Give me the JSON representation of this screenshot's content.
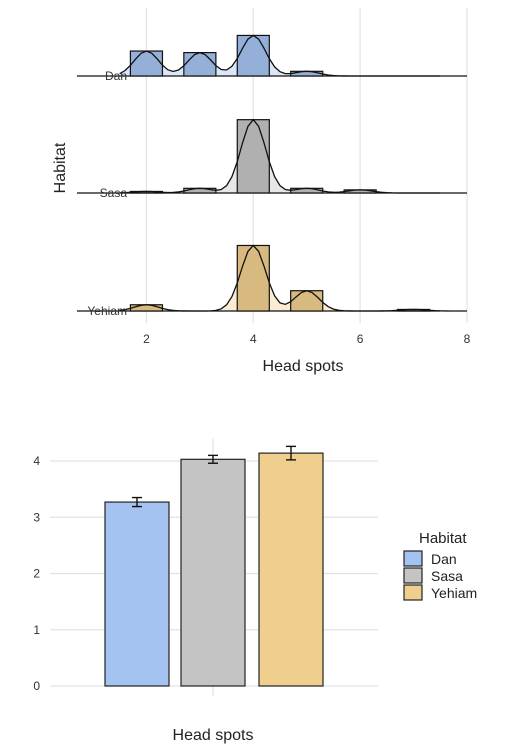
{
  "chart_data": [
    {
      "type": "area",
      "subtype": "ridgeline-histogram",
      "xlabel": "Head spots",
      "ylabel": "Habitat",
      "xlim": [
        1,
        8
      ],
      "x_ticks": [
        2,
        4,
        6,
        8
      ],
      "grid": true,
      "categories": [
        "Dan",
        "Sasa",
        "Yehiam"
      ],
      "series": [
        {
          "name": "Dan",
          "color": "#a4c3f1",
          "histogram": [
            {
              "x": 2,
              "proportion": 0.16
            },
            {
              "x": 3,
              "proportion": 0.15
            },
            {
              "x": 4,
              "proportion": 0.26
            },
            {
              "x": 5,
              "proportion": 0.03
            }
          ]
        },
        {
          "name": "Sasa",
          "color": "#c4c4c4",
          "histogram": [
            {
              "x": 2,
              "proportion": 0.01
            },
            {
              "x": 3,
              "proportion": 0.03
            },
            {
              "x": 4,
              "proportion": 0.47
            },
            {
              "x": 5,
              "proportion": 0.03
            },
            {
              "x": 6,
              "proportion": 0.02
            }
          ]
        },
        {
          "name": "Yehiam",
          "color": "#f0cf8e",
          "histogram": [
            {
              "x": 2,
              "proportion": 0.04
            },
            {
              "x": 4,
              "proportion": 0.42
            },
            {
              "x": 5,
              "proportion": 0.13
            },
            {
              "x": 7,
              "proportion": 0.01
            }
          ]
        }
      ]
    },
    {
      "type": "bar",
      "xlabel": "Head spots",
      "ylabel": "",
      "ylim": [
        0,
        4.4
      ],
      "y_ticks": [
        0,
        1,
        2,
        3,
        4
      ],
      "grid": true,
      "legend": {
        "title": "Habitat",
        "placement": "right"
      },
      "categories": [
        "Dan",
        "Sasa",
        "Yehiam"
      ],
      "values": [
        3.27,
        4.03,
        4.14
      ],
      "error": [
        0.08,
        0.07,
        0.12
      ],
      "colors": [
        "#a4c3f1",
        "#c4c4c4",
        "#f0cf8e"
      ]
    }
  ]
}
